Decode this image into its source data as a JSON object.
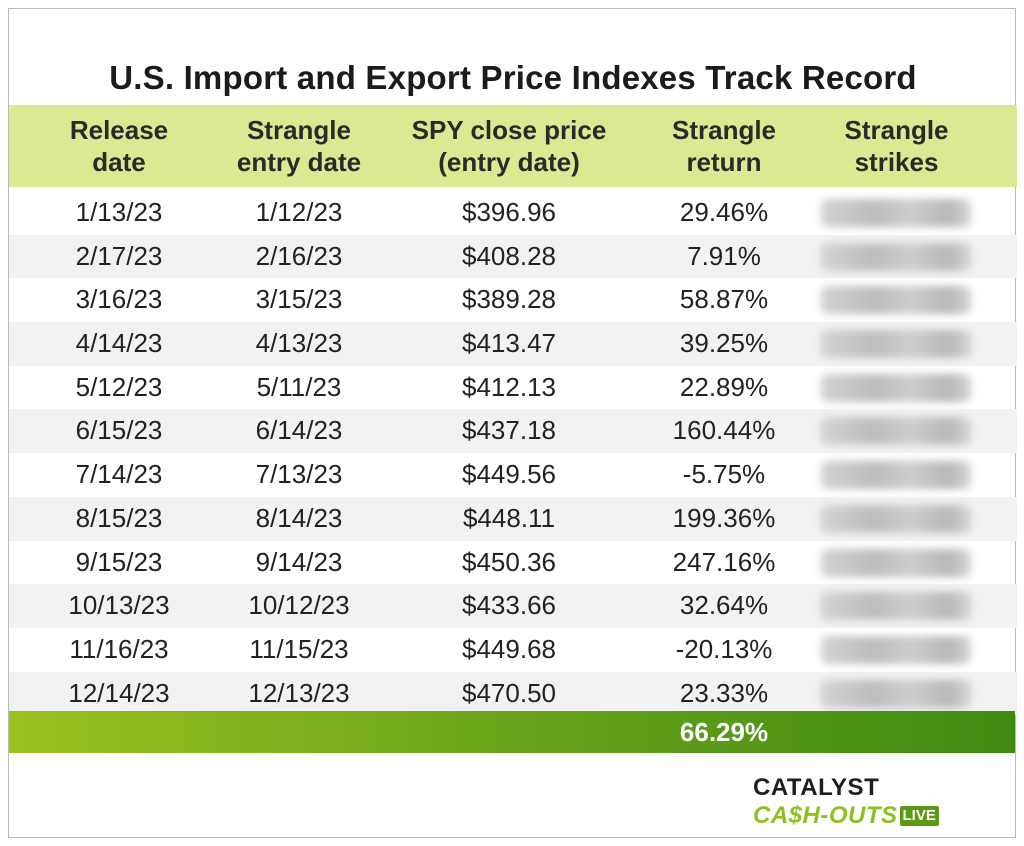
{
  "title": "U.S. Import and Export Price Indexes Track Record",
  "headers": [
    "Release\ndate",
    "Strangle\nentry date",
    "SPY close price\n(entry date)",
    "Strangle\nreturn",
    "Strangle\nstrikes"
  ],
  "rows": [
    {
      "release": "1/13/23",
      "entry": "1/12/23",
      "spy": "$396.96",
      "return": "29.46%"
    },
    {
      "release": "2/17/23",
      "entry": "2/16/23",
      "spy": "$408.28",
      "return": "7.91%"
    },
    {
      "release": "3/16/23",
      "entry": "3/15/23",
      "spy": "$389.28",
      "return": "58.87%"
    },
    {
      "release": "4/14/23",
      "entry": "4/13/23",
      "spy": "$413.47",
      "return": "39.25%"
    },
    {
      "release": "5/12/23",
      "entry": "5/11/23",
      "spy": "$412.13",
      "return": "22.89%"
    },
    {
      "release": "6/15/23",
      "entry": "6/14/23",
      "spy": "$437.18",
      "return": "160.44%"
    },
    {
      "release": "7/14/23",
      "entry": "7/13/23",
      "spy": "$449.56",
      "return": "-5.75%"
    },
    {
      "release": "8/15/23",
      "entry": "8/14/23",
      "spy": "$448.11",
      "return": "199.36%"
    },
    {
      "release": "9/15/23",
      "entry": "9/14/23",
      "spy": "$450.36",
      "return": "247.16%"
    },
    {
      "release": "10/13/23",
      "entry": "10/12/23",
      "spy": "$433.66",
      "return": "32.64%"
    },
    {
      "release": "11/16/23",
      "entry": "11/15/23",
      "spy": "$449.68",
      "return": "-20.13%"
    },
    {
      "release": "12/14/23",
      "entry": "12/13/23",
      "spy": "$470.50",
      "return": "23.33%"
    }
  ],
  "total_return": "66.29%",
  "logo": {
    "top": "CATALYST",
    "bottom": "CA$H-OUTS",
    "badge": "LIVE"
  },
  "colors": {
    "header_bg": "#d9ea93",
    "total_green": "#6ea61b",
    "logo_green": "#8cc21f"
  }
}
